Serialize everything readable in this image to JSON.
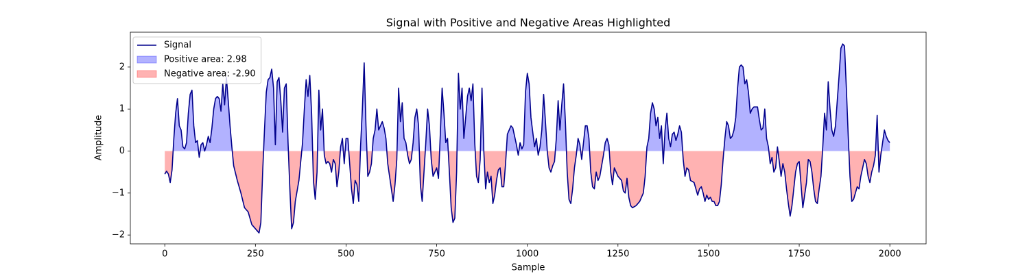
{
  "chart_data": {
    "type": "line",
    "title": "Signal with Positive and Negative Areas Highlighted",
    "x_label": "Sample",
    "y_label": "Amplitude",
    "xlim": [
      -95,
      2100
    ],
    "ylim": [
      -2.21,
      2.83
    ],
    "xticks": [
      0,
      250,
      500,
      750,
      1000,
      1250,
      1500,
      1750,
      2000
    ],
    "yticks": [
      {
        "value": -2,
        "label": "−2"
      },
      {
        "value": -1,
        "label": "−1"
      },
      0,
      1,
      2
    ],
    "legend": "upper left",
    "series": [
      {
        "name": "Signal",
        "color": "#00008b",
        "x": [
          0,
          5,
          10,
          15,
          20,
          25,
          30,
          35,
          40,
          45,
          50,
          55,
          60,
          65,
          70,
          75,
          80,
          85,
          90,
          95,
          100,
          105,
          110,
          115,
          120,
          125,
          130,
          135,
          140,
          145,
          150,
          155,
          160,
          165,
          170,
          175,
          180,
          185,
          190,
          200,
          210,
          220,
          230,
          240,
          250,
          260,
          265,
          270,
          275,
          280,
          285,
          290,
          295,
          300,
          305,
          310,
          315,
          320,
          325,
          330,
          335,
          340,
          345,
          350,
          355,
          360,
          370,
          380,
          385,
          390,
          395,
          400,
          405,
          410,
          415,
          420,
          425,
          430,
          435,
          440,
          445,
          450,
          455,
          460,
          465,
          470,
          475,
          480,
          485,
          490,
          495,
          500,
          505,
          510,
          515,
          520,
          525,
          530,
          535,
          540,
          545,
          550,
          555,
          560,
          565,
          570,
          575,
          580,
          585,
          590,
          595,
          600,
          605,
          610,
          615,
          620,
          625,
          630,
          635,
          640,
          645,
          650,
          655,
          660,
          665,
          670,
          675,
          680,
          685,
          690,
          695,
          700,
          705,
          710,
          715,
          720,
          725,
          730,
          735,
          740,
          745,
          750,
          755,
          760,
          765,
          770,
          775,
          780,
          785,
          790,
          795,
          800,
          805,
          810,
          815,
          820,
          825,
          830,
          835,
          840,
          845,
          850,
          855,
          860,
          865,
          870,
          875,
          880,
          885,
          890,
          895,
          900,
          905,
          910,
          915,
          920,
          925,
          930,
          935,
          940,
          945,
          950,
          955,
          960,
          965,
          970,
          975,
          980,
          985,
          990,
          995,
          1000,
          1005,
          1010,
          1015,
          1020,
          1025,
          1030,
          1035,
          1040,
          1045,
          1050,
          1055,
          1060,
          1065,
          1070,
          1075,
          1080,
          1085,
          1090,
          1095,
          1100,
          1105,
          1110,
          1115,
          1120,
          1125,
          1130,
          1135,
          1140,
          1145,
          1150,
          1155,
          1160,
          1165,
          1170,
          1175,
          1180,
          1185,
          1190,
          1195,
          1200,
          1210,
          1215,
          1220,
          1225,
          1230,
          1235,
          1240,
          1250,
          1260,
          1265,
          1270,
          1275,
          1280,
          1285,
          1290,
          1300,
          1310,
          1320,
          1325,
          1330,
          1335,
          1340,
          1345,
          1350,
          1355,
          1360,
          1365,
          1370,
          1375,
          1380,
          1385,
          1390,
          1395,
          1400,
          1405,
          1410,
          1415,
          1420,
          1425,
          1430,
          1435,
          1440,
          1445,
          1450,
          1460,
          1465,
          1470,
          1475,
          1480,
          1485,
          1490,
          1495,
          1500,
          1505,
          1510,
          1515,
          1520,
          1525,
          1530,
          1535,
          1540,
          1545,
          1550,
          1555,
          1560,
          1565,
          1570,
          1575,
          1580,
          1585,
          1590,
          1595,
          1600,
          1605,
          1610,
          1615,
          1620,
          1625,
          1630,
          1635,
          1640,
          1645,
          1650,
          1655,
          1660,
          1665,
          1670,
          1675,
          1680,
          1685,
          1690,
          1695,
          1700,
          1705,
          1710,
          1715,
          1720,
          1725,
          1730,
          1735,
          1740,
          1745,
          1750,
          1755,
          1760,
          1765,
          1770,
          1775,
          1780,
          1785,
          1790,
          1795,
          1800,
          1805,
          1810,
          1815,
          1820,
          1825,
          1830,
          1835,
          1840,
          1845,
          1850,
          1855,
          1860,
          1865,
          1870,
          1875,
          1880,
          1885,
          1890,
          1895,
          1900,
          1905,
          1910,
          1915,
          1920,
          1925,
          1930,
          1935,
          1940,
          1945,
          1950,
          1955,
          1960,
          1965,
          1970,
          1975,
          1980,
          1985,
          1990,
          1995,
          2000
        ],
        "values": [
          -0.55,
          -0.48,
          -0.55,
          -0.75,
          -0.45,
          0.3,
          0.9,
          1.25,
          0.6,
          0.5,
          0.1,
          0.05,
          0.2,
          0.9,
          1.35,
          1.45,
          0.6,
          0.2,
          0.25,
          -0.15,
          0.15,
          0.2,
          0.0,
          0.15,
          0.35,
          0.2,
          0.55,
          1.0,
          1.25,
          1.3,
          1.25,
          0.95,
          1.6,
          1.1,
          1.75,
          1.2,
          0.6,
          0.1,
          -0.35,
          -0.7,
          -1.0,
          -1.35,
          -1.45,
          -1.75,
          -1.85,
          -1.95,
          -1.7,
          -0.5,
          0.5,
          1.4,
          1.7,
          1.75,
          1.95,
          1.5,
          0.15,
          1.65,
          1.75,
          1.2,
          0.45,
          1.5,
          1.6,
          0.2,
          -0.9,
          -1.85,
          -1.7,
          -1.2,
          -0.7,
          0.2,
          1.0,
          1.7,
          1.3,
          1.8,
          0.9,
          -0.7,
          -1.15,
          -0.5,
          1.45,
          0.5,
          1.0,
          -0.1,
          -0.3,
          -0.25,
          -0.3,
          -0.5,
          -0.2,
          -0.3,
          -0.85,
          -0.5,
          0.1,
          0.3,
          -0.3,
          0.3,
          0.3,
          -0.3,
          -0.9,
          -1.25,
          -0.7,
          -0.8,
          -1.2,
          0.1,
          1.0,
          2.1,
          0.6,
          -0.6,
          -0.5,
          -0.3,
          0.3,
          0.5,
          1.0,
          0.5,
          0.6,
          0.7,
          0.55,
          0.3,
          -0.3,
          -0.6,
          -0.9,
          -1.2,
          -0.8,
          -0.2,
          1.5,
          0.7,
          1.15,
          0.3,
          0.2,
          -0.1,
          -0.3,
          -0.2,
          0.2,
          0.8,
          1.0,
          0.6,
          -0.8,
          -1.2,
          -0.5,
          0.2,
          1.0,
          0.6,
          -0.2,
          -0.6,
          -0.5,
          -0.4,
          -0.65,
          0.4,
          1.5,
          0.9,
          0.2,
          0.3,
          -0.5,
          -1.35,
          -1.7,
          -1.6,
          -0.5,
          1.85,
          1.0,
          1.5,
          0.3,
          0.8,
          1.3,
          1.5,
          1.2,
          1.6,
          0.2,
          -0.6,
          -0.75,
          -0.2,
          1.5,
          0.0,
          -0.9,
          -0.5,
          -0.75,
          -0.6,
          -1.25,
          -1.05,
          -0.7,
          -0.45,
          -0.4,
          -0.85,
          -0.85,
          -0.3,
          0.4,
          0.5,
          0.6,
          0.55,
          0.35,
          0.15,
          -0.1,
          0.2,
          0.05,
          0.15,
          1.4,
          1.85,
          1.6,
          0.8,
          0.45,
          0.1,
          0.3,
          -0.1,
          0.1,
          0.5,
          1.35,
          0.7,
          0.0,
          -0.4,
          -0.5,
          -0.35,
          -0.25,
          0.3,
          1.2,
          0.5,
          1.1,
          1.6,
          0.7,
          -0.5,
          -1.15,
          -1.25,
          -0.9,
          -0.4,
          -0.1,
          0.3,
          0.15,
          -0.2,
          0.2,
          0.6,
          0.6,
          0.3,
          -0.5,
          -0.85,
          -0.9,
          -0.5,
          -0.7,
          -0.6,
          -0.1,
          0.2,
          0.3,
          0.15,
          -0.5,
          -0.8,
          -0.4,
          -0.6,
          -0.7,
          -0.95,
          -1.0,
          -0.65,
          -1.1,
          -1.3,
          -1.35,
          -1.3,
          -1.2,
          -1.0,
          -0.6,
          0.1,
          0.3,
          0.9,
          1.15,
          1.0,
          0.6,
          0.8,
          0.3,
          0.6,
          -0.3,
          0.5,
          0.9,
          0.3,
          0.1,
          0.4,
          0.45,
          0.25,
          0.4,
          0.6,
          0.45,
          -0.2,
          -0.6,
          -0.4,
          -0.45,
          -0.7,
          -0.75,
          -0.9,
          -1.05,
          -0.9,
          -0.85,
          -1.0,
          -1.2,
          -1.05,
          -1.15,
          -1.1,
          -1.2,
          -1.2,
          -1.3,
          -1.3,
          -1.2,
          -0.8,
          -0.2,
          0.3,
          0.7,
          0.6,
          0.3,
          0.35,
          0.5,
          0.8,
          1.5,
          2.0,
          2.05,
          2.0,
          1.6,
          1.7,
          1.4,
          0.9,
          1.0,
          1.05,
          1.05,
          1.05,
          0.75,
          0.5,
          0.55,
          1.0,
          0.3,
          0.1,
          -0.3,
          -0.15,
          -0.5,
          -0.4,
          0.1,
          -0.25,
          -0.6,
          -0.3,
          -0.5,
          -0.9,
          -1.25,
          -1.55,
          -1.3,
          -0.9,
          -0.5,
          -0.3,
          -0.25,
          -0.8,
          -1.35,
          -1.05,
          -0.75,
          -0.2,
          -0.25,
          -0.5,
          -0.9,
          -1.2,
          -1.25,
          -0.9,
          -0.6,
          0.1,
          0.9,
          0.5,
          1.65,
          1.0,
          0.5,
          0.35,
          0.6,
          1.2,
          1.8,
          2.45,
          2.55,
          2.5,
          1.5,
          0.4,
          -0.6,
          -1.2,
          -1.15,
          -1.0,
          -0.85,
          -0.9,
          -0.6,
          -0.4,
          -0.2,
          -0.3,
          -0.6,
          -0.75,
          -0.5,
          -0.35,
          -0.1,
          0.85,
          -0.5,
          -0.1,
          0.2,
          0.5,
          0.35,
          0.25,
          0.2
        ]
      }
    ],
    "areas": [
      {
        "name": "Positive area: 2.98",
        "color": "#0000ff",
        "where": "positive"
      },
      {
        "name": "Negative area: -2.90",
        "color": "#ff0000",
        "where": "negative"
      }
    ]
  }
}
